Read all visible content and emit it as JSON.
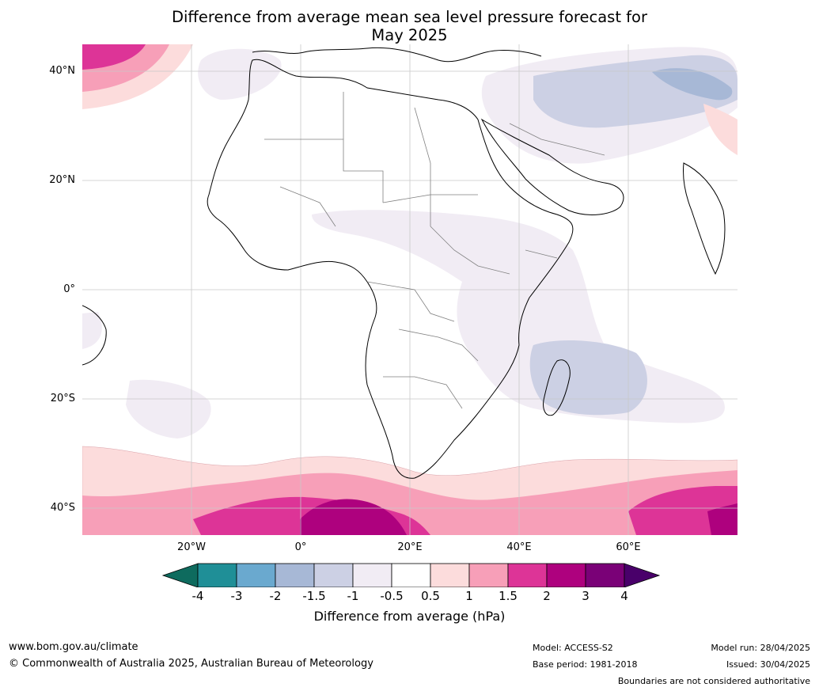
{
  "title_line1": "Difference from average mean sea level pressure forecast for",
  "title_line2": "May 2025",
  "lat_labels": [
    "40°N",
    "20°N",
    "0°",
    "20°S",
    "40°S"
  ],
  "lon_labels": [
    "20°W",
    "0°",
    "20°E",
    "40°E",
    "60°E"
  ],
  "colorbar": {
    "ticks": [
      "-4",
      "-3",
      "-2",
      "-1.5",
      "-1",
      "-0.5",
      "0.5",
      "1",
      "1.5",
      "2",
      "3",
      "4"
    ],
    "colors": [
      "#0e6b5e",
      "#1f8f97",
      "#6aa9cf",
      "#a7b8d6",
      "#ccd0e4",
      "#f1ecf4",
      "#ffffff",
      "#fcdcdc",
      "#f79fb8",
      "#dd3497",
      "#ae017e",
      "#7a0177",
      "#49006a"
    ],
    "label": "Difference from average (hPa)"
  },
  "footer": {
    "url": "www.bom.gov.au/climate",
    "copyright": "© Commonwealth of Australia 2025, Australian Bureau of Meteorology",
    "model": "Model: ACCESS-S2",
    "base_period": "Base period: 1981-2018",
    "model_run": "Model run: 28/04/2025",
    "issued": "Issued: 30/04/2025",
    "boundaries": "Boundaries are not considered authoritative"
  }
}
